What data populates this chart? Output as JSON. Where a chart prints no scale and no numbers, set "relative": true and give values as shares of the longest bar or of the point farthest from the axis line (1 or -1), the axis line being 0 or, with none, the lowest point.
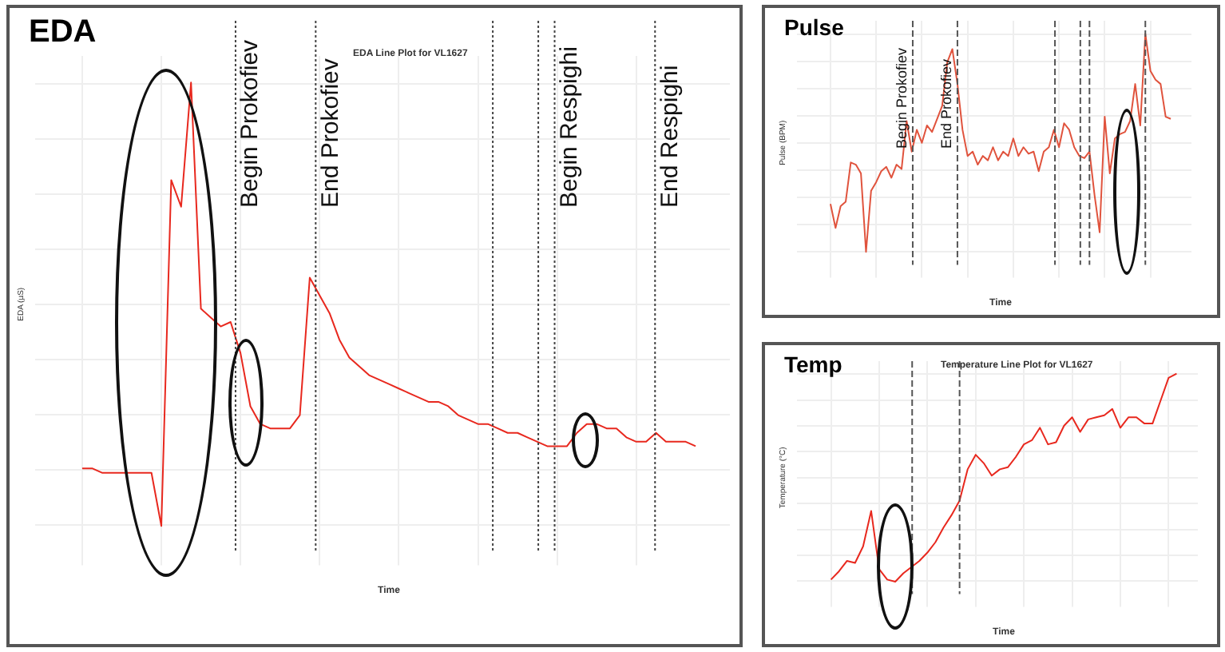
{
  "chart_data": [
    {
      "type": "line",
      "title": "EDA",
      "subtitle": "EDA Line Plot for VL1627",
      "xlabel": "Time",
      "ylabel": "EDA (µS)",
      "relative": true,
      "grid": true,
      "legend": false,
      "marker": "none",
      "categories": [
        null,
        null,
        null,
        null,
        null,
        null,
        null,
        null,
        null,
        null,
        null,
        null,
        null,
        null,
        null,
        null,
        null,
        null,
        null,
        null,
        null,
        null,
        null,
        null,
        null,
        null,
        null,
        null,
        null,
        null,
        null,
        null,
        null,
        null,
        null,
        null,
        null,
        null,
        null,
        null,
        null,
        null,
        null,
        null,
        null,
        null,
        null,
        null,
        null,
        null,
        null,
        null,
        null,
        null,
        null,
        null,
        null,
        null,
        null,
        null,
        null,
        null,
        null
      ],
      "series": [
        {
          "color": "#e8281e",
          "values": [
            0.13,
            0.13,
            0.12,
            0.12,
            0.12,
            0.12,
            0.12,
            0.12,
            0,
            0.78,
            0.72,
            1,
            0.49,
            0.47,
            0.45,
            0.46,
            0.39,
            0.27,
            0.23,
            0.22,
            0.22,
            0.22,
            0.25,
            0.56,
            0.52,
            0.48,
            0.42,
            0.38,
            0.36,
            0.34,
            0.33,
            0.32,
            0.31,
            0.3,
            0.29,
            0.28,
            0.28,
            0.27,
            0.25,
            0.24,
            0.23,
            0.23,
            0.22,
            0.21,
            0.21,
            0.2,
            0.19,
            0.18,
            0.18,
            0.18,
            0.21,
            0.23,
            0.23,
            0.22,
            0.22,
            0.2,
            0.19,
            0.19,
            0.21,
            0.19,
            0.19,
            0.19,
            0.18
          ]
        }
      ],
      "annotations": [
        "Begin Prokofiev",
        "End Prokofiev",
        "Begin Respighi",
        "End Respighi"
      ]
    },
    {
      "type": "line",
      "title": "Pulse",
      "xlabel": "Time",
      "ylabel": "Pulse (BPM)",
      "relative": true,
      "grid": true,
      "legend": false,
      "marker": "none",
      "categories": [
        null,
        null,
        null,
        null,
        null,
        null,
        null,
        null,
        null,
        null,
        null,
        null,
        null,
        null,
        null,
        null,
        null,
        null,
        null,
        null,
        null,
        null,
        null,
        null,
        null,
        null,
        null,
        null,
        null,
        null,
        null,
        null,
        null,
        null,
        null,
        null,
        null,
        null,
        null,
        null,
        null,
        null,
        null,
        null,
        null,
        null,
        null,
        null,
        null,
        null,
        null,
        null,
        null,
        null,
        null,
        null,
        null,
        null,
        null,
        null,
        null,
        null,
        null,
        null,
        null,
        null,
        null,
        null
      ],
      "series": [
        {
          "color": "#e0533d",
          "values": [
            0.22,
            0.11,
            0.21,
            0.23,
            0.41,
            0.4,
            0.36,
            0,
            0.28,
            0.32,
            0.37,
            0.39,
            0.34,
            0.4,
            0.38,
            0.6,
            0.46,
            0.56,
            0.5,
            0.58,
            0.55,
            0.61,
            0.67,
            0.87,
            0.93,
            0.77,
            0.56,
            0.44,
            0.46,
            0.4,
            0.44,
            0.42,
            0.48,
            0.42,
            0.46,
            0.44,
            0.52,
            0.44,
            0.48,
            0.45,
            0.46,
            0.37,
            0.46,
            0.48,
            0.56,
            0.48,
            0.59,
            0.56,
            0.48,
            0.44,
            0.43,
            0.46,
            0.26,
            0.09,
            0.62,
            0.36,
            0.52,
            0.54,
            0.55,
            0.6,
            0.77,
            0.58,
            1,
            0.83,
            0.79,
            0.77,
            0.62,
            0.61
          ]
        }
      ],
      "annotations": [
        "Begin Prokofiev",
        "End Prokofiev"
      ]
    },
    {
      "type": "line",
      "title": "Temp",
      "subtitle": "Temperature Line Plot for VL1627",
      "xlabel": "Time",
      "ylabel": "Temperature (°C)",
      "relative": true,
      "grid": true,
      "legend": false,
      "marker": "none",
      "categories": [
        null,
        null,
        null,
        null,
        null,
        null,
        null,
        null,
        null,
        null,
        null,
        null,
        null,
        null,
        null,
        null,
        null,
        null,
        null,
        null,
        null,
        null,
        null,
        null,
        null,
        null,
        null,
        null,
        null,
        null,
        null,
        null,
        null,
        null,
        null,
        null,
        null,
        null,
        null,
        null,
        null,
        null,
        null,
        null
      ],
      "series": [
        {
          "color": "#e8281e",
          "values": [
            0.01,
            0.05,
            0.1,
            0.09,
            0.17,
            0.34,
            0.06,
            0.01,
            0,
            0.04,
            0.07,
            0.1,
            0.14,
            0.19,
            0.26,
            0.32,
            0.39,
            0.54,
            0.61,
            0.57,
            0.51,
            0.54,
            0.55,
            0.6,
            0.66,
            0.68,
            0.74,
            0.66,
            0.67,
            0.75,
            0.79,
            0.72,
            0.78,
            0.79,
            0.8,
            0.83,
            0.74,
            0.79,
            0.79,
            0.76,
            0.76,
            0.87,
            0.98,
            1
          ]
        }
      ]
    }
  ]
}
